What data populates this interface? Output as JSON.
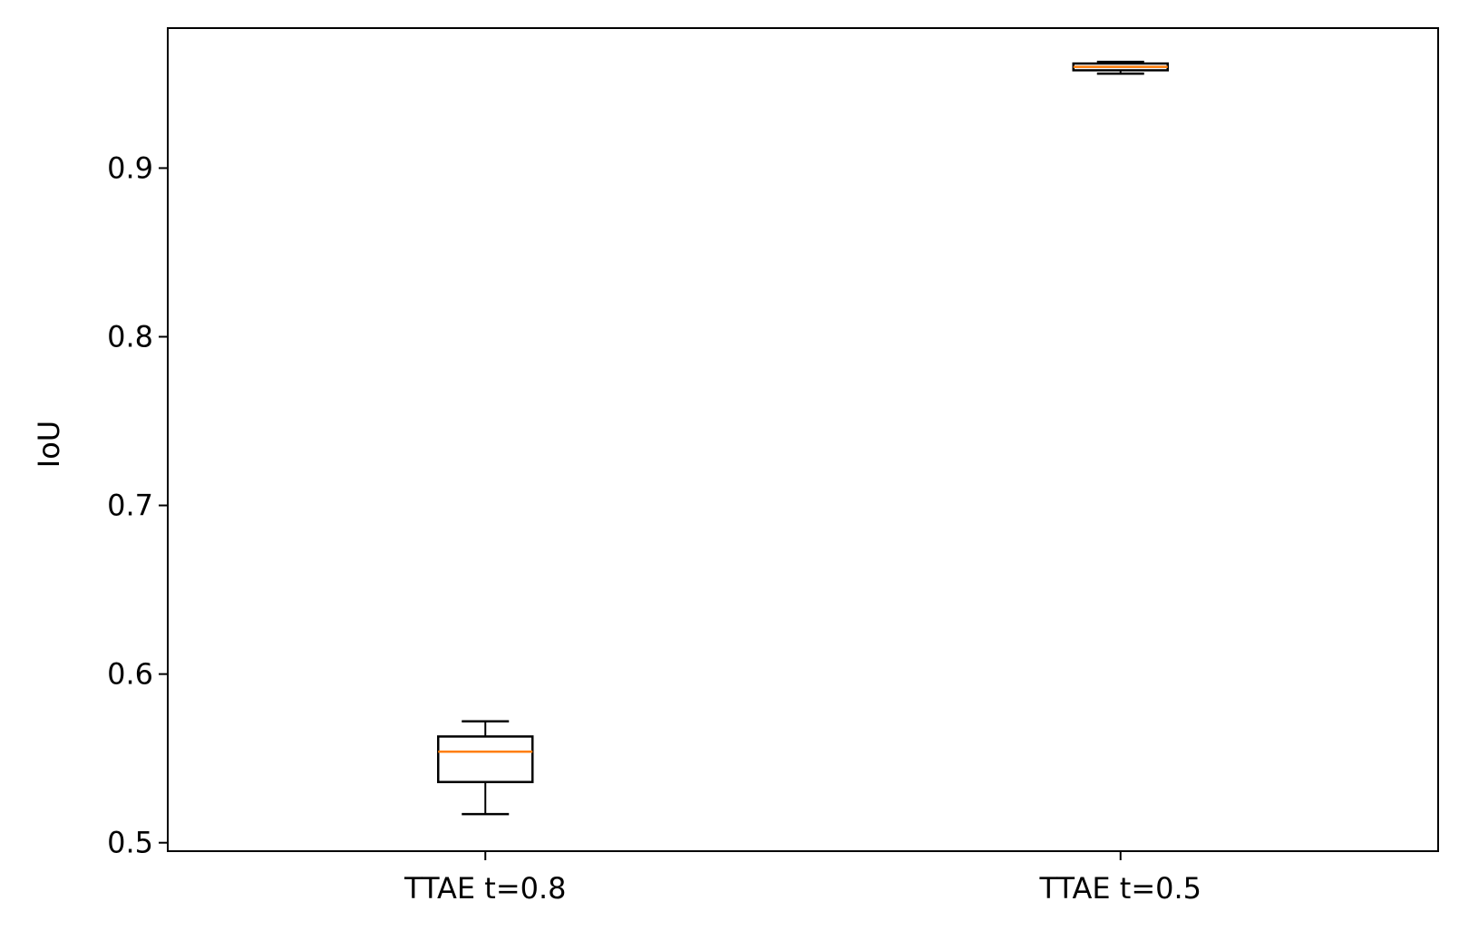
{
  "chart_data": {
    "type": "box",
    "title": "",
    "xlabel": "",
    "ylabel": "IoU",
    "ylim": [
      0.495,
      0.983
    ],
    "yticks": [
      "0.5",
      "0.6",
      "0.7",
      "0.8",
      "0.9"
    ],
    "grid": false,
    "colors": {
      "box": "#000000",
      "median": "#ff7f0e",
      "axes": "#000000"
    },
    "categories": [
      "TTAE t=0.8",
      "TTAE t=0.5"
    ],
    "boxes": [
      {
        "label": "TTAE t=0.8",
        "whisker_low": 0.517,
        "q1": 0.536,
        "median": 0.554,
        "q3": 0.563,
        "whisker_high": 0.572
      },
      {
        "label": "TTAE t=0.5",
        "whisker_low": 0.956,
        "q1": 0.958,
        "median": 0.96,
        "q3": 0.962,
        "whisker_high": 0.963
      }
    ]
  }
}
